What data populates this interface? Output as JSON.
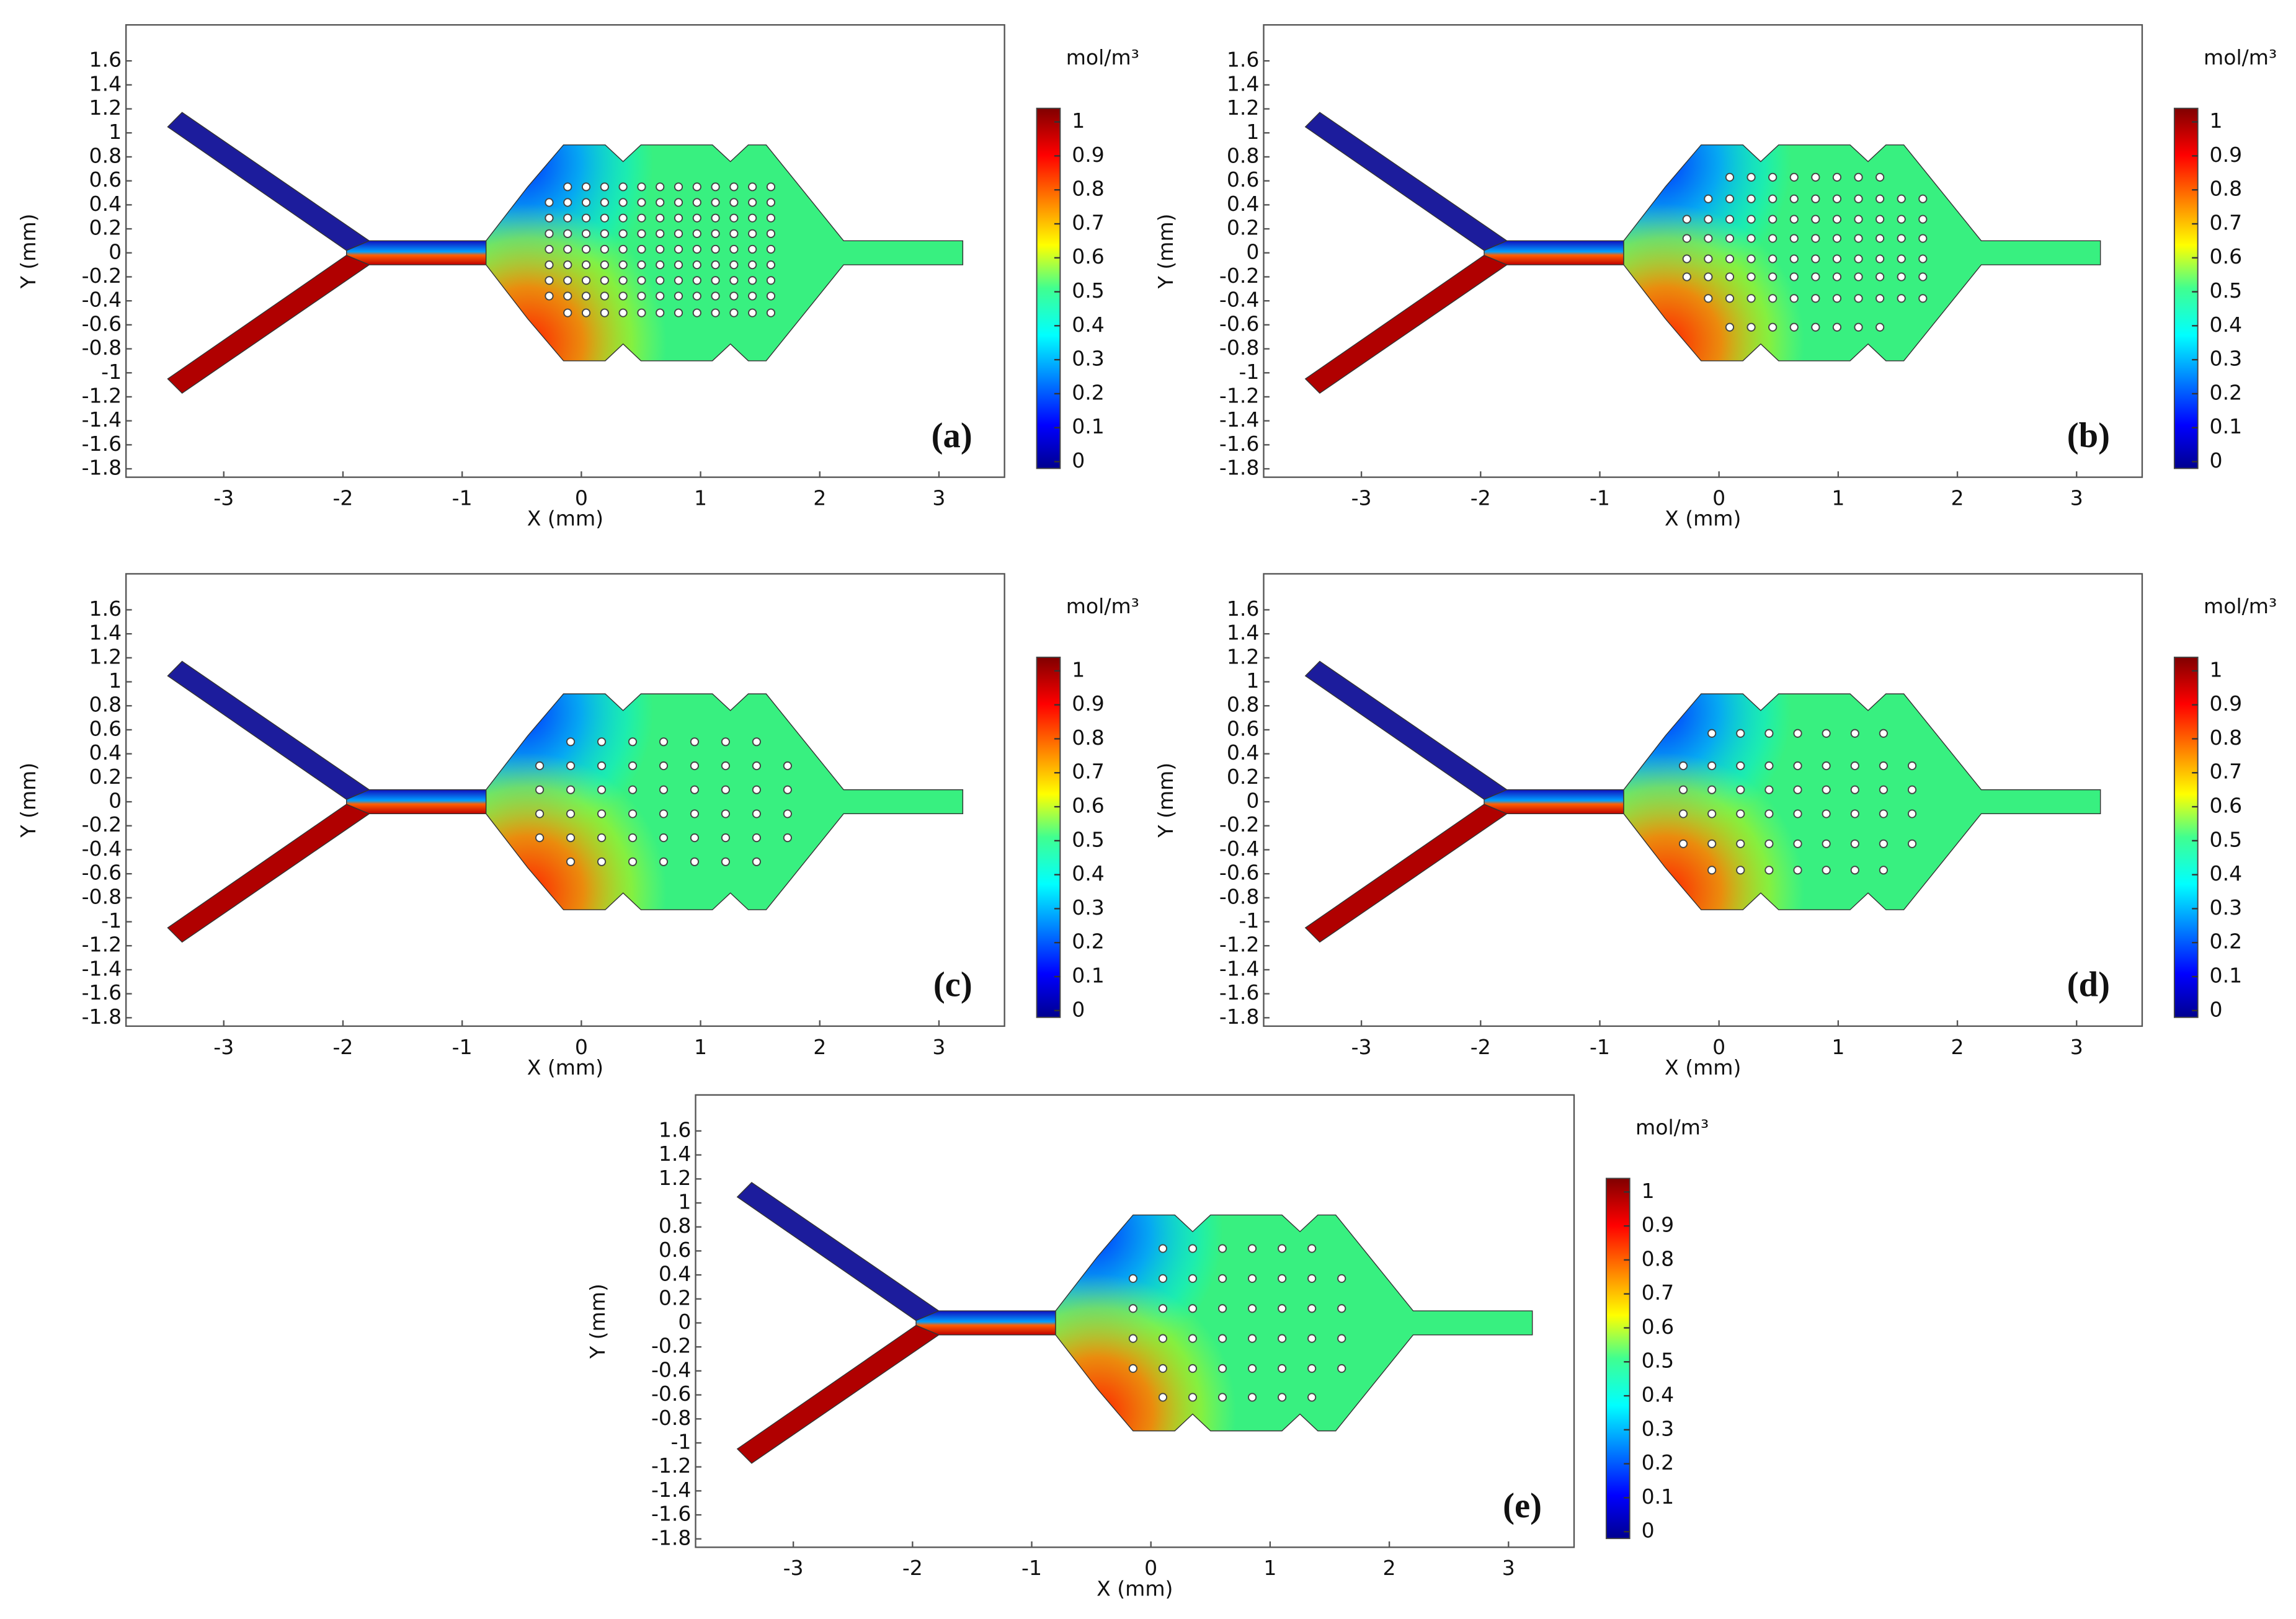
{
  "chart_data": [
    {
      "type": "heatmap",
      "panel_label": "(a)",
      "xlabel": "X (mm)",
      "ylabel": "Y (mm)",
      "xlim": [
        -3.82,
        3.55
      ],
      "ylim": [
        -1.87,
        1.9
      ],
      "xticks": [
        -3,
        -2,
        -1,
        0,
        1,
        2,
        3
      ],
      "yticks": [
        1.6,
        1.4,
        1.2,
        1,
        0.8,
        0.6,
        0.4,
        0.2,
        0,
        -0.2,
        -0.4,
        -0.6,
        -0.8,
        -1,
        -1.2,
        -1.4,
        -1.6,
        -1.8
      ],
      "colorbar": {
        "label": "mol/m³",
        "lim": [
          -0.02,
          1.04
        ],
        "ticks": [
          1,
          0.9,
          0.8,
          0.7,
          0.6,
          0.5,
          0.4,
          0.3,
          0.2,
          0.1,
          0
        ]
      }
    },
    {
      "type": "heatmap",
      "panel_label": "(b)",
      "xlabel": "X (mm)",
      "ylabel": "Y (mm)",
      "xlim": [
        -3.82,
        3.55
      ],
      "ylim": [
        -1.87,
        1.9
      ],
      "xticks": [
        -3,
        -2,
        -1,
        0,
        1,
        2,
        3
      ],
      "yticks": [
        1.6,
        1.4,
        1.2,
        1,
        0.8,
        0.6,
        0.4,
        0.2,
        0,
        -0.2,
        -0.4,
        -0.6,
        -0.8,
        -1,
        -1.2,
        -1.4,
        -1.6,
        -1.8
      ],
      "colorbar": {
        "label": "mol/m³",
        "lim": [
          -0.02,
          1.04
        ],
        "ticks": [
          1,
          0.9,
          0.8,
          0.7,
          0.6,
          0.5,
          0.4,
          0.3,
          0.2,
          0.1,
          0
        ]
      }
    },
    {
      "type": "heatmap",
      "panel_label": "(c)",
      "xlabel": "X (mm)",
      "ylabel": "Y (mm)",
      "xlim": [
        -3.82,
        3.55
      ],
      "ylim": [
        -1.87,
        1.9
      ],
      "xticks": [
        -3,
        -2,
        -1,
        0,
        1,
        2,
        3
      ],
      "yticks": [
        1.6,
        1.4,
        1.2,
        1,
        0.8,
        0.6,
        0.4,
        0.2,
        0,
        -0.2,
        -0.4,
        -0.6,
        -0.8,
        -1,
        -1.2,
        -1.4,
        -1.6,
        -1.8
      ],
      "colorbar": {
        "label": "mol/m³",
        "lim": [
          -0.02,
          1.04
        ],
        "ticks": [
          1,
          0.9,
          0.8,
          0.7,
          0.6,
          0.5,
          0.4,
          0.3,
          0.2,
          0.1,
          0
        ]
      }
    },
    {
      "type": "heatmap",
      "panel_label": "(d)",
      "xlabel": "X (mm)",
      "ylabel": "Y (mm)",
      "xlim": [
        -3.82,
        3.55
      ],
      "ylim": [
        -1.87,
        1.9
      ],
      "xticks": [
        -3,
        -2,
        -1,
        0,
        1,
        2,
        3
      ],
      "yticks": [
        1.6,
        1.4,
        1.2,
        1,
        0.8,
        0.6,
        0.4,
        0.2,
        0,
        -0.2,
        -0.4,
        -0.6,
        -0.8,
        -1,
        -1.2,
        -1.4,
        -1.6,
        -1.8
      ],
      "colorbar": {
        "label": "mol/m³",
        "lim": [
          -0.02,
          1.04
        ],
        "ticks": [
          1,
          0.9,
          0.8,
          0.7,
          0.6,
          0.5,
          0.4,
          0.3,
          0.2,
          0.1,
          0
        ]
      }
    },
    {
      "type": "heatmap",
      "panel_label": "(e)",
      "xlabel": "X (mm)",
      "ylabel": "Y (mm)",
      "xlim": [
        -3.82,
        3.55
      ],
      "ylim": [
        -1.87,
        1.9
      ],
      "xticks": [
        -3,
        -2,
        -1,
        0,
        1,
        2,
        3
      ],
      "yticks": [
        1.6,
        1.4,
        1.2,
        1,
        0.8,
        0.6,
        0.4,
        0.2,
        0,
        -0.2,
        -0.4,
        -0.6,
        -0.8,
        -1,
        -1.2,
        -1.4,
        -1.6,
        -1.8
      ],
      "colorbar": {
        "label": "mol/m³",
        "lim": [
          -0.02,
          1.04
        ],
        "ticks": [
          1,
          0.9,
          0.8,
          0.7,
          0.6,
          0.5,
          0.4,
          0.3,
          0.2,
          0.1,
          0
        ]
      }
    }
  ]
}
